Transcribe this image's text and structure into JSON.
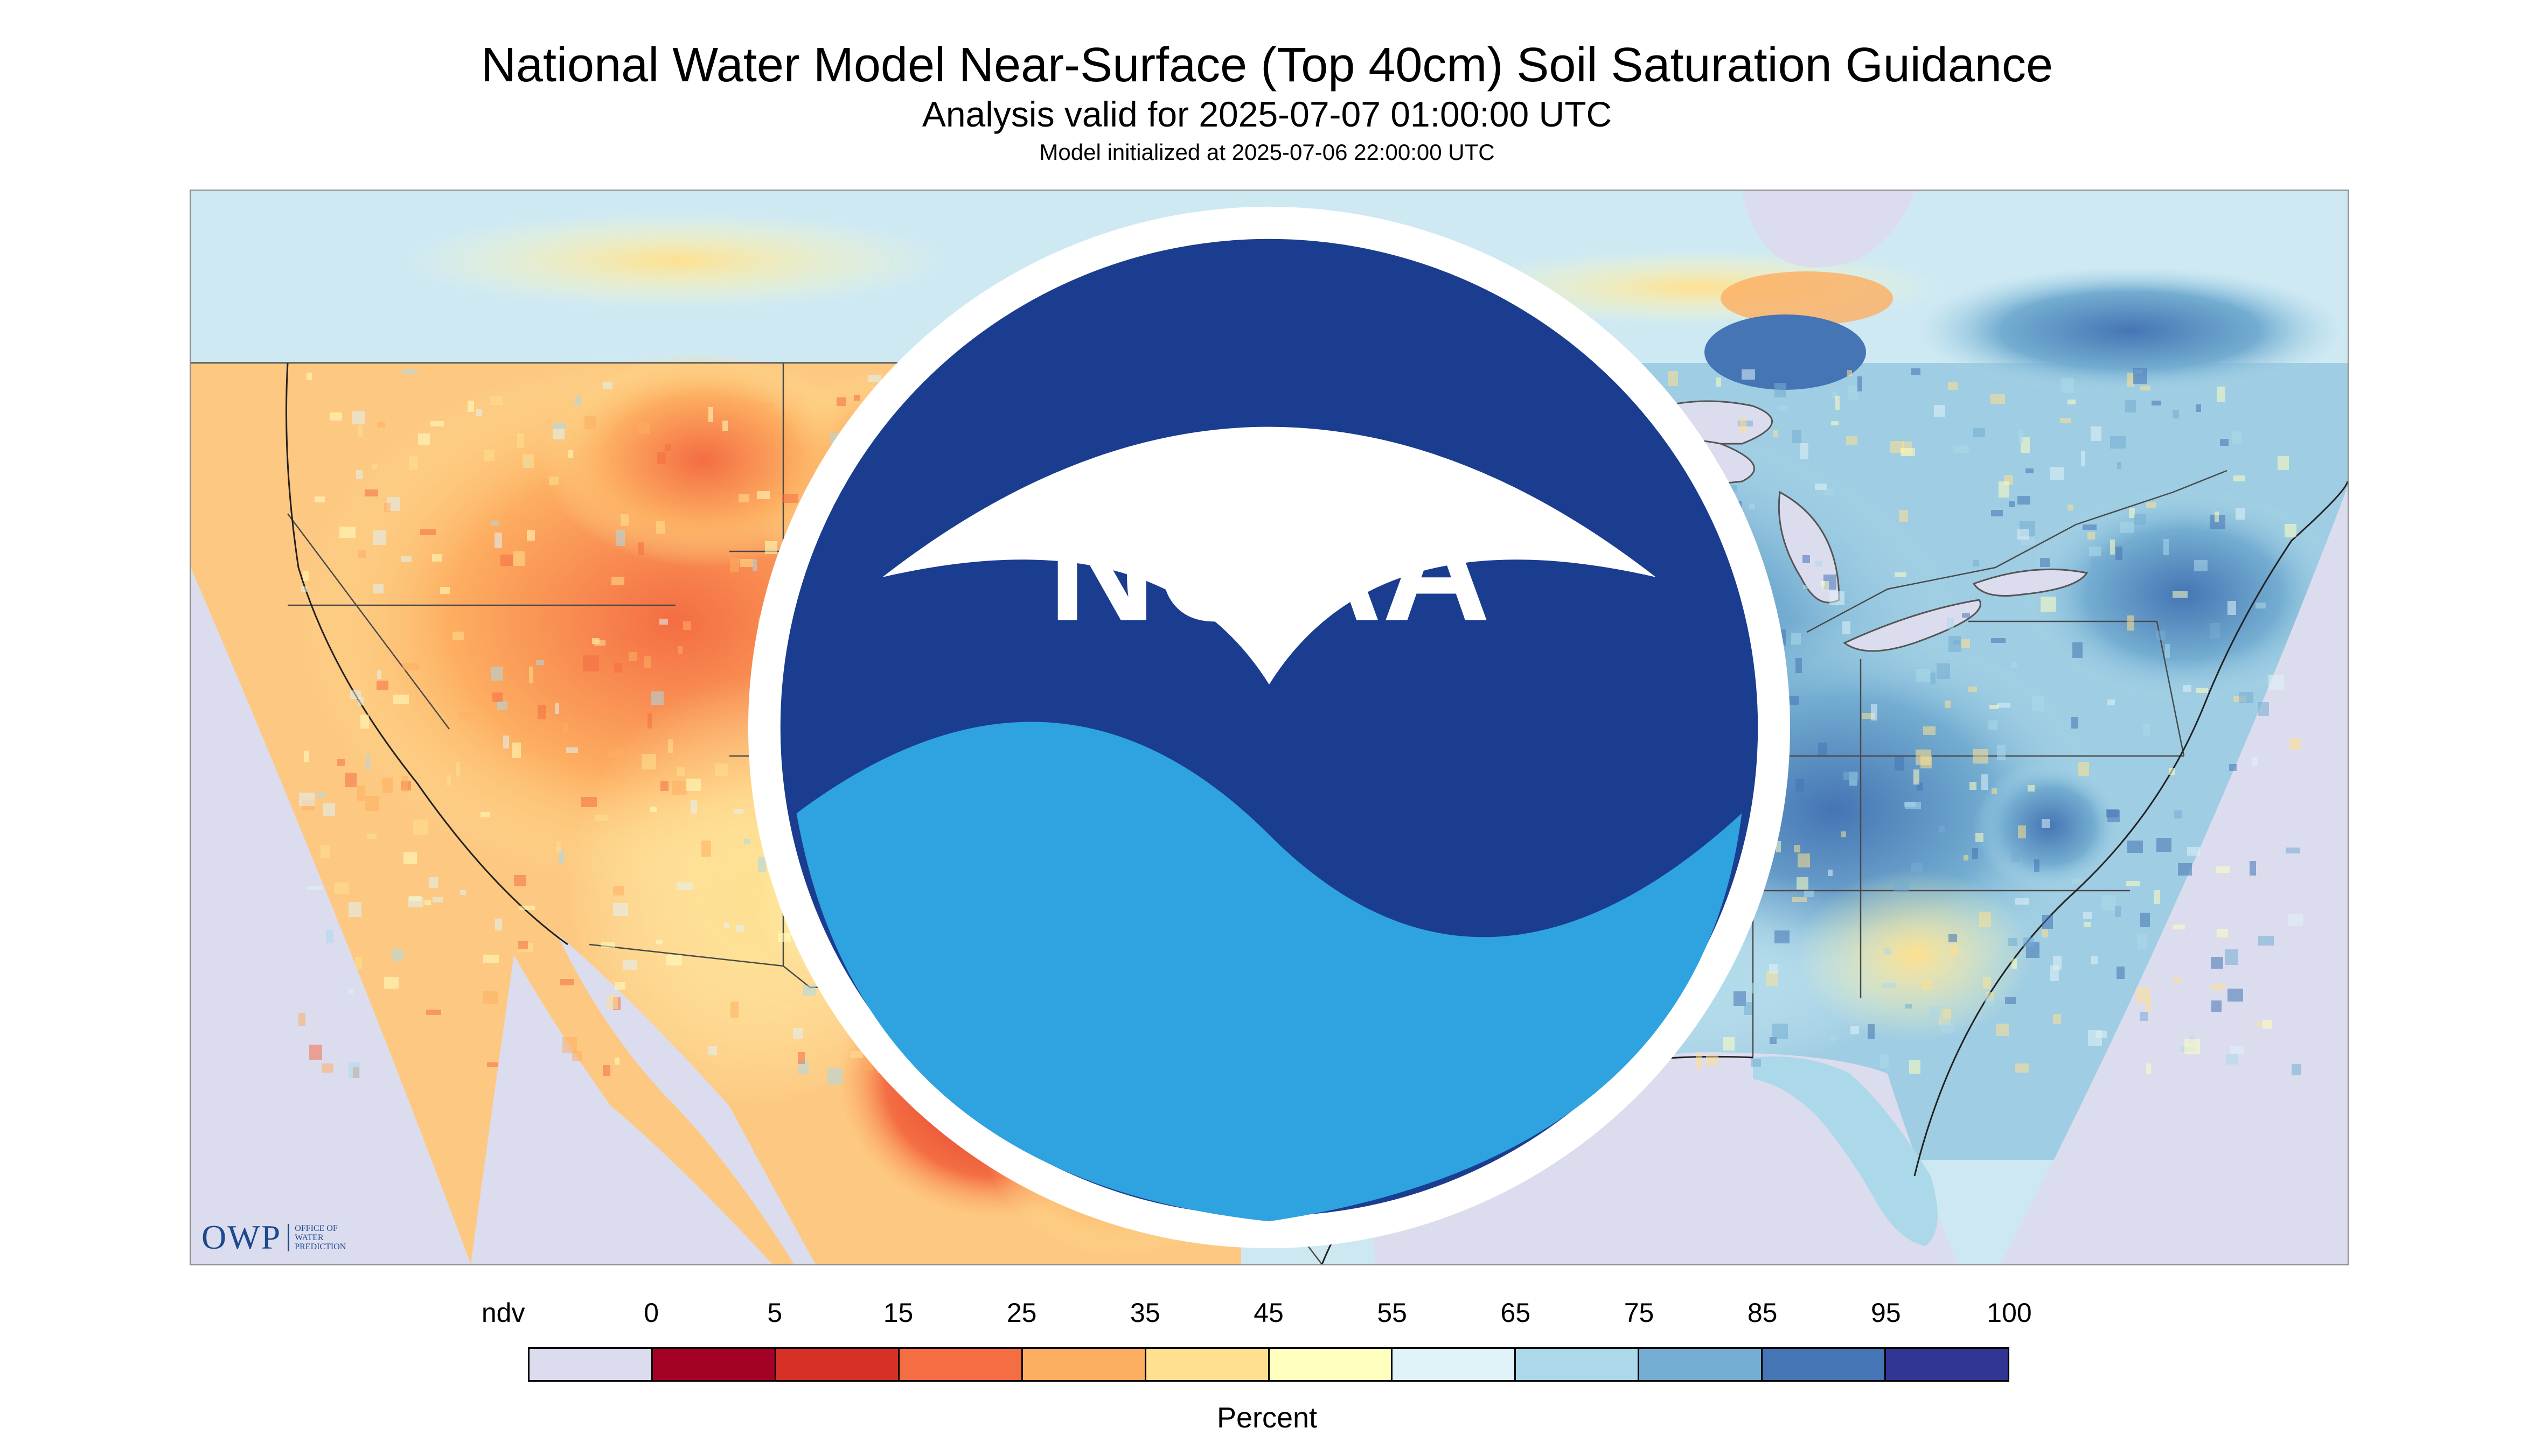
{
  "header": {
    "title": "National Water Model Near-Surface (Top 40cm) Soil Saturation Guidance",
    "subtitle": "Analysis valid for 2025-07-07 01:00:00 UTC",
    "init_line": "Model initialized at 2025-07-06 22:00:00 UTC"
  },
  "map": {
    "region": "Contiguous United States",
    "projection_outside_color": "#dcdcef",
    "water_color": "#dcdcef",
    "logos": {
      "owp_text": "OWP",
      "owp_subtext": "OFFICE OF WATER PREDICTION",
      "noaa_text": "NOAA"
    }
  },
  "legend": {
    "units": "Percent",
    "labels": [
      "ndv",
      "0",
      "5",
      "15",
      "25",
      "35",
      "45",
      "55",
      "65",
      "75",
      "85",
      "95",
      "100"
    ],
    "colors": [
      "#dcdcef",
      "#a50026",
      "#d73027",
      "#f46d43",
      "#fdae61",
      "#fee090",
      "#ffffbf",
      "#e0f3f8",
      "#abd9e9",
      "#74add1",
      "#4575b4",
      "#313695"
    ]
  }
}
